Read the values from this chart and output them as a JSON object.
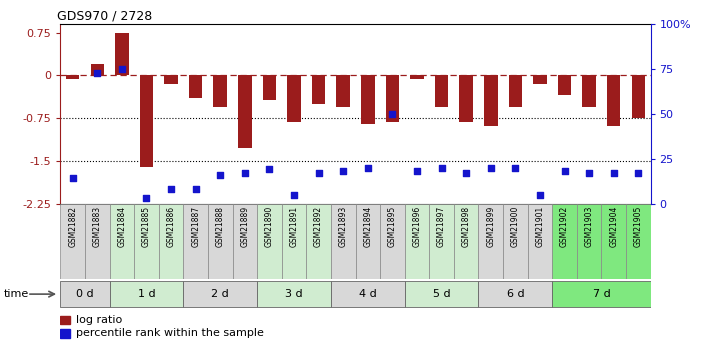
{
  "title": "GDS970 / 2728",
  "samples": [
    "GSM21882",
    "GSM21883",
    "GSM21884",
    "GSM21885",
    "GSM21886",
    "GSM21887",
    "GSM21888",
    "GSM21889",
    "GSM21890",
    "GSM21891",
    "GSM21892",
    "GSM21893",
    "GSM21894",
    "GSM21895",
    "GSM21896",
    "GSM21897",
    "GSM21898",
    "GSM21899",
    "GSM21900",
    "GSM21901",
    "GSM21902",
    "GSM21903",
    "GSM21904",
    "GSM21905"
  ],
  "log_ratio": [
    -0.07,
    0.2,
    0.75,
    -1.6,
    -0.15,
    -0.4,
    -0.55,
    -1.28,
    -0.44,
    -0.82,
    -0.5,
    -0.55,
    -0.85,
    -0.82,
    -0.07,
    -0.55,
    -0.82,
    -0.88,
    -0.55,
    -0.15,
    -0.35,
    -0.55,
    -0.88,
    -0.75
  ],
  "percentile": [
    14,
    73,
    75,
    3,
    8,
    8,
    16,
    17,
    19,
    5,
    17,
    18,
    20,
    50,
    18,
    20,
    17,
    20,
    20,
    5,
    18,
    17,
    17,
    17
  ],
  "time_groups": [
    {
      "label": "0 d",
      "start": 0,
      "end": 2,
      "color": "#d8d8d8"
    },
    {
      "label": "1 d",
      "start": 2,
      "end": 5,
      "color": "#d0ecd0"
    },
    {
      "label": "2 d",
      "start": 5,
      "end": 8,
      "color": "#d8d8d8"
    },
    {
      "label": "3 d",
      "start": 8,
      "end": 11,
      "color": "#d0ecd0"
    },
    {
      "label": "4 d",
      "start": 11,
      "end": 14,
      "color": "#d8d8d8"
    },
    {
      "label": "5 d",
      "start": 14,
      "end": 17,
      "color": "#d0ecd0"
    },
    {
      "label": "6 d",
      "start": 17,
      "end": 20,
      "color": "#d8d8d8"
    },
    {
      "label": "7 d",
      "start": 20,
      "end": 24,
      "color": "#7fe87f"
    }
  ],
  "sample_bg_colors": [
    "#d8d8d8",
    "#d8d8d8",
    "#d0ecd0",
    "#d0ecd0",
    "#d0ecd0",
    "#d8d8d8",
    "#d8d8d8",
    "#d8d8d8",
    "#d0ecd0",
    "#d0ecd0",
    "#d0ecd0",
    "#d8d8d8",
    "#d8d8d8",
    "#d8d8d8",
    "#d0ecd0",
    "#d0ecd0",
    "#d0ecd0",
    "#d8d8d8",
    "#d8d8d8",
    "#d8d8d8",
    "#7fe87f",
    "#7fe87f",
    "#7fe87f",
    "#7fe87f"
  ],
  "bar_color": "#9b1c1c",
  "dot_color": "#1414cc",
  "ylim_left": [
    -2.25,
    0.9
  ],
  "ylim_right": [
    0,
    100
  ],
  "yticks_left": [
    0.75,
    0,
    -0.75,
    -1.5,
    -2.25
  ],
  "yticks_right": [
    0,
    25,
    50,
    75,
    100
  ],
  "dotted_lines": [
    -0.75,
    -1.5
  ],
  "hline_y": 0,
  "background_color": "#ffffff",
  "legend_logratio_label": "log ratio",
  "legend_percentile_label": "percentile rank within the sample"
}
